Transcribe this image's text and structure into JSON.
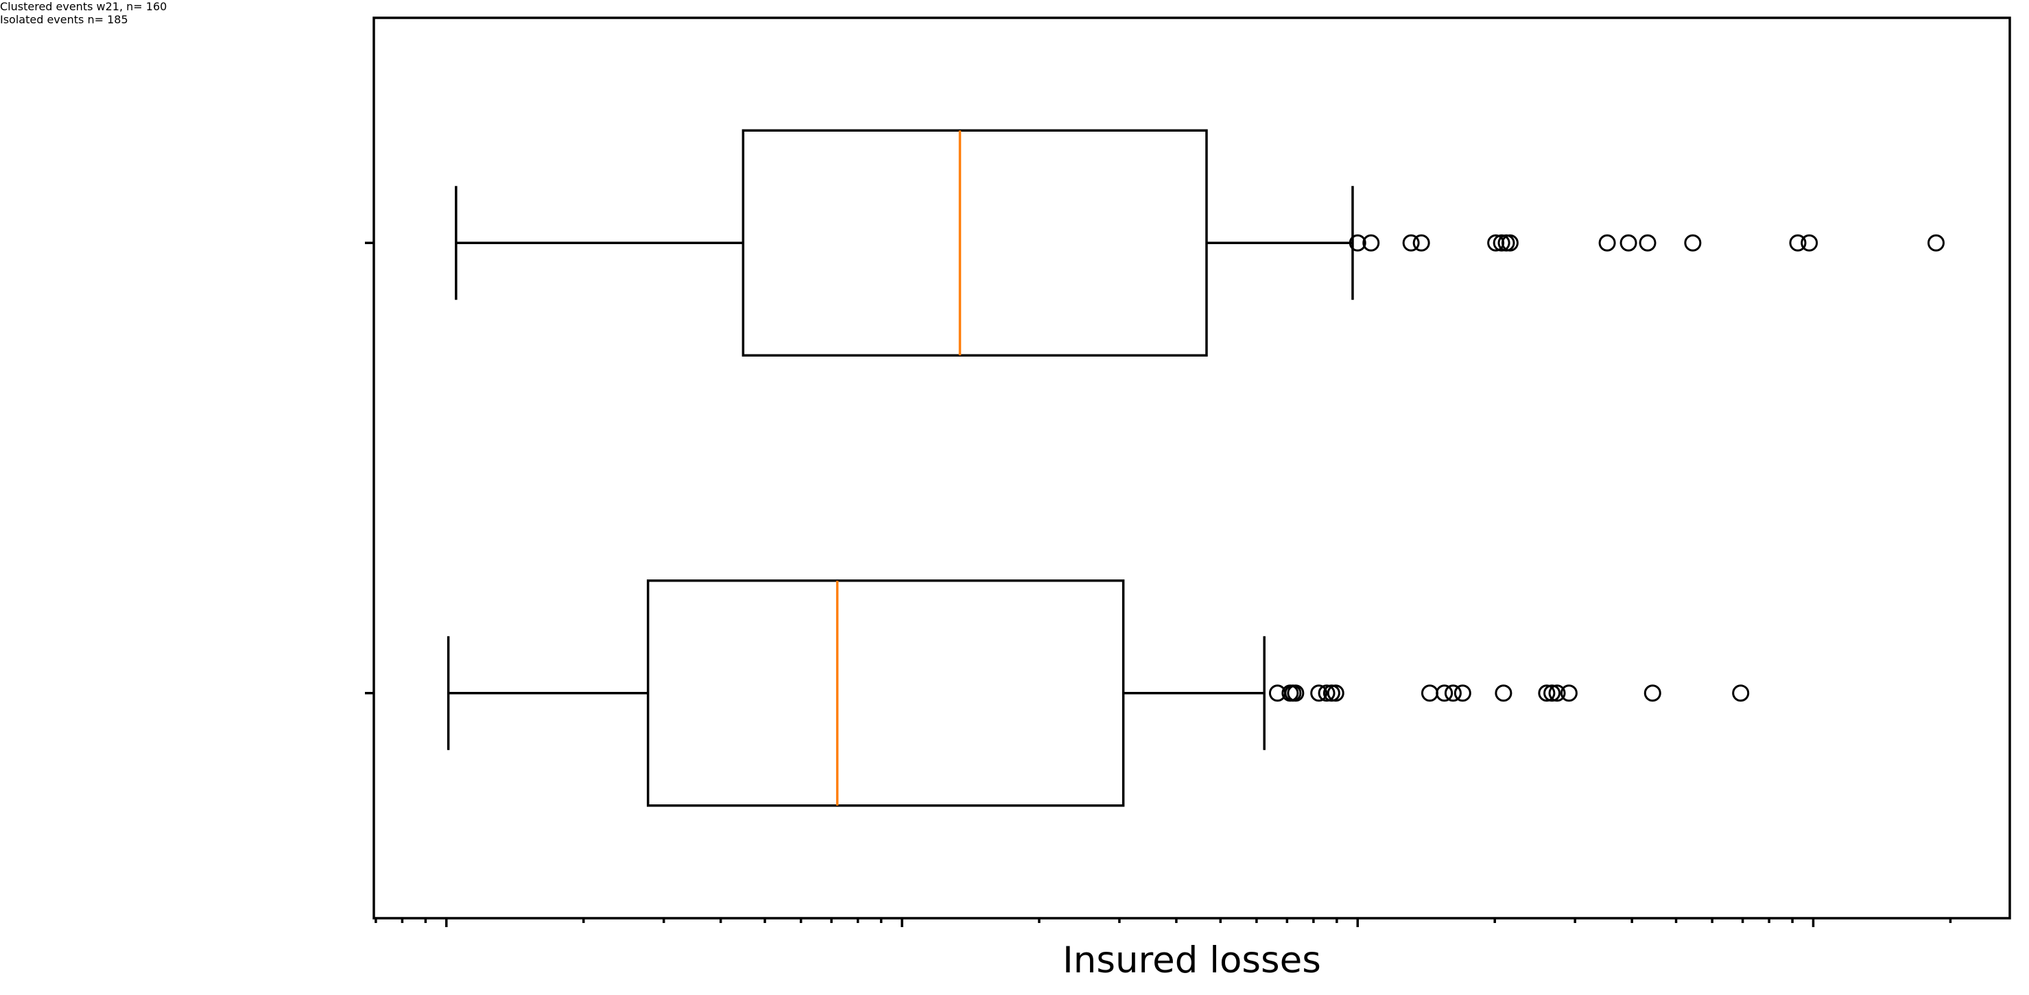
{
  "chart_data": {
    "type": "boxplot",
    "orientation": "horizontal",
    "xlabel": "Insured losses",
    "categories": [
      "Clustered events\nw21, n= 160",
      "Isolated events\nn= 185"
    ],
    "boxes": [
      {
        "whislo": 1050000,
        "q1": 4480000,
        "med": 13400000,
        "q3": 46600000,
        "whishi": 97500000,
        "fliers": [
          100000000,
          107000000,
          131000000,
          138000000,
          201000000,
          207000000,
          212000000,
          216000000,
          353000000,
          393000000,
          433000000,
          544000000,
          925000000,
          980000000,
          1860000000
        ]
      },
      {
        "whislo": 1010000,
        "q1": 2770000,
        "med": 7210000,
        "q3": 30600000,
        "whishi": 62400000,
        "fliers": [
          66700000,
          71100000,
          72100000,
          73100000,
          82200000,
          85500000,
          87700000,
          89500000,
          144000000,
          155000000,
          162000000,
          170000000,
          209000000,
          260000000,
          267000000,
          274000000,
          291000000,
          444000000,
          693000000
        ]
      }
    ],
    "box_color": "#000000",
    "median_color": "#ff7f0e",
    "xscale": "log",
    "xlim": [
      693000,
      2700000000
    ],
    "xticks": [
      1000000,
      10000000,
      100000000,
      1000000000
    ],
    "xminorticks": [
      700000,
      800000,
      900000,
      2000000,
      3000000,
      4000000,
      5000000,
      6000000,
      7000000,
      8000000,
      9000000,
      20000000,
      30000000,
      40000000,
      50000000,
      60000000,
      70000000,
      80000000,
      90000000,
      200000000,
      300000000,
      400000000,
      500000000,
      600000000,
      700000000,
      800000000,
      900000000,
      2000000000
    ],
    "grid": false
  }
}
